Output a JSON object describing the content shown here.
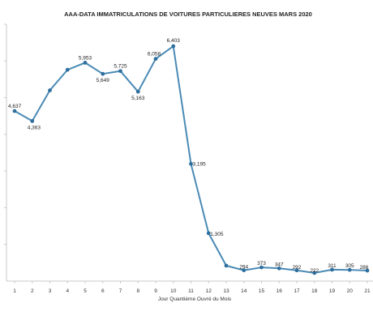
{
  "chart_data": {
    "type": "line",
    "title": "AAA-DATA  IMMATRICULATIONS DE VOITURES PARTICULIERES NEUVES MARS 2020",
    "xlabel": "Jour Quantième Ouvré du Mois",
    "ylabel": "",
    "x": [
      1,
      2,
      3,
      4,
      5,
      6,
      7,
      8,
      9,
      10,
      11,
      12,
      13,
      14,
      15,
      16,
      17,
      18,
      19,
      20,
      21
    ],
    "xlim": [
      0.6,
      21.4
    ],
    "ylim": [
      0,
      7000
    ],
    "grid": false,
    "legend": "none",
    "colors": {
      "line": "#4a8ab5",
      "marker": "#2f6f9e",
      "axis": "#c8c8c8"
    },
    "series": [
      {
        "values": [
          4637,
          4363,
          5200,
          5760,
          5953,
          5649,
          5725,
          5163,
          6058,
          6403,
          3195,
          1305,
          420,
          294,
          373,
          347,
          292,
          222,
          311,
          305,
          286
        ]
      }
    ],
    "data_labels": [
      {
        "index": 0,
        "text": "4,637"
      },
      {
        "index": 1,
        "text": "4,363"
      },
      {
        "index": 4,
        "text": "5,953"
      },
      {
        "index": 5,
        "text": "5,649"
      },
      {
        "index": 6,
        "text": "5,725"
      },
      {
        "index": 7,
        "text": "5,163"
      },
      {
        "index": 8,
        "text": "6,058"
      },
      {
        "index": 9,
        "text": "6,403"
      },
      {
        "index": 10,
        "text": "3,195"
      },
      {
        "index": 11,
        "text": "1,305"
      },
      {
        "index": 13,
        "text": "294"
      },
      {
        "index": 14,
        "text": "373"
      },
      {
        "index": 15,
        "text": "347"
      },
      {
        "index": 16,
        "text": "292"
      },
      {
        "index": 17,
        "text": "222"
      },
      {
        "index": 18,
        "text": "311"
      },
      {
        "index": 19,
        "text": "305"
      },
      {
        "index": 20,
        "text": "286"
      }
    ]
  }
}
